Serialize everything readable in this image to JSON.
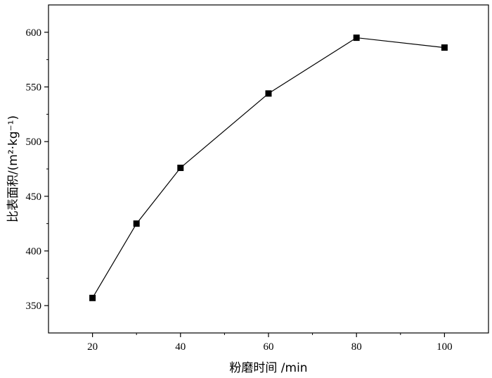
{
  "chart_data": {
    "type": "line",
    "x": [
      20,
      30,
      40,
      60,
      80,
      100
    ],
    "y": [
      357,
      425,
      476,
      544,
      595,
      586
    ],
    "xlabel": "粉磨时间 /min",
    "ylabel": "比表面积/(m²·kg⁻¹)",
    "xlim": [
      10,
      110
    ],
    "ylim": [
      325,
      625
    ],
    "xticks": [
      20,
      40,
      60,
      80,
      100
    ],
    "yticks": [
      350,
      400,
      450,
      500,
      550,
      600
    ],
    "marker": "square",
    "line_color": "#000000",
    "grid": false,
    "legend": "none"
  }
}
